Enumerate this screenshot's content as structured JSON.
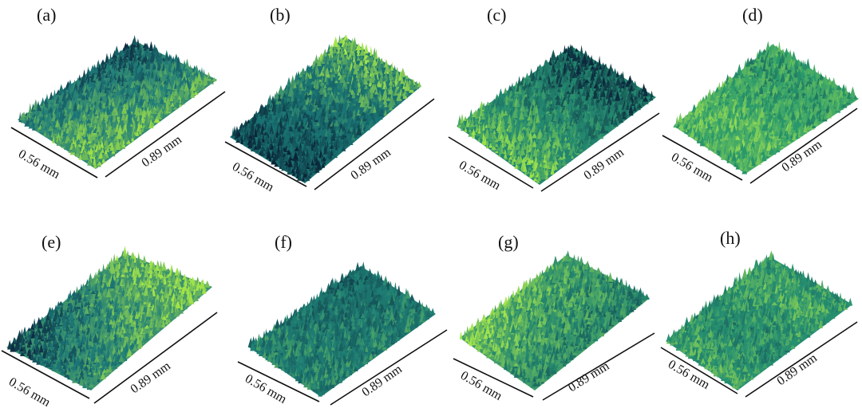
{
  "panels": [
    {
      "label": "(a)",
      "width_label": "0.56 mm",
      "length_label": "0.89 mm",
      "colors": {
        "low": "#0d2b40",
        "mid": "#1e7b7a",
        "high": "#9fe047"
      },
      "tone": "dark-upper-right, bright-front"
    },
    {
      "label": "(b)",
      "width_label": "0.56 mm",
      "length_label": "0.89 mm",
      "colors": {
        "low": "#0b2536",
        "mid": "#1a7574",
        "high": "#a4e44c"
      },
      "tone": "dark-front-left, bright-back-right"
    },
    {
      "label": "(c)",
      "width_label": "0.56 mm",
      "length_label": "0.89 mm",
      "colors": {
        "low": "#0c2a3e",
        "mid": "#248a70",
        "high": "#9be24c"
      },
      "tone": "bright-left, dark-right"
    },
    {
      "label": "(d)",
      "width_label": "0.56 mm",
      "length_label": "0.89 mm",
      "colors": {
        "low": "#12404f",
        "mid": "#2a9a6c",
        "high": "#a8e650"
      },
      "tone": "uniform-green"
    },
    {
      "label": "(e)",
      "width_label": "0.56 mm",
      "length_label": "0.89 mm",
      "colors": {
        "low": "#0d2c40",
        "mid": "#1d7a78",
        "high": "#a2e34a"
      },
      "tone": "dark-back, bright-right"
    },
    {
      "label": "(f)",
      "width_label": "0.56 mm",
      "length_label": "0.89 mm",
      "colors": {
        "low": "#103846",
        "mid": "#1f8075",
        "high": "#8fd84e"
      },
      "tone": "uniform-teal"
    },
    {
      "label": "(g)",
      "width_label": "0.56 mm",
      "length_label": "0.89 mm",
      "colors": {
        "low": "#0f3446",
        "mid": "#23876f",
        "high": "#a6e64e"
      },
      "tone": "bright-back, teal-front"
    },
    {
      "label": "(h)",
      "width_label": "0.56 mm",
      "length_label": "0.89 mm",
      "colors": {
        "low": "#12404f",
        "mid": "#268f70",
        "high": "#9ee04e"
      },
      "tone": "uniform-mixed"
    }
  ]
}
